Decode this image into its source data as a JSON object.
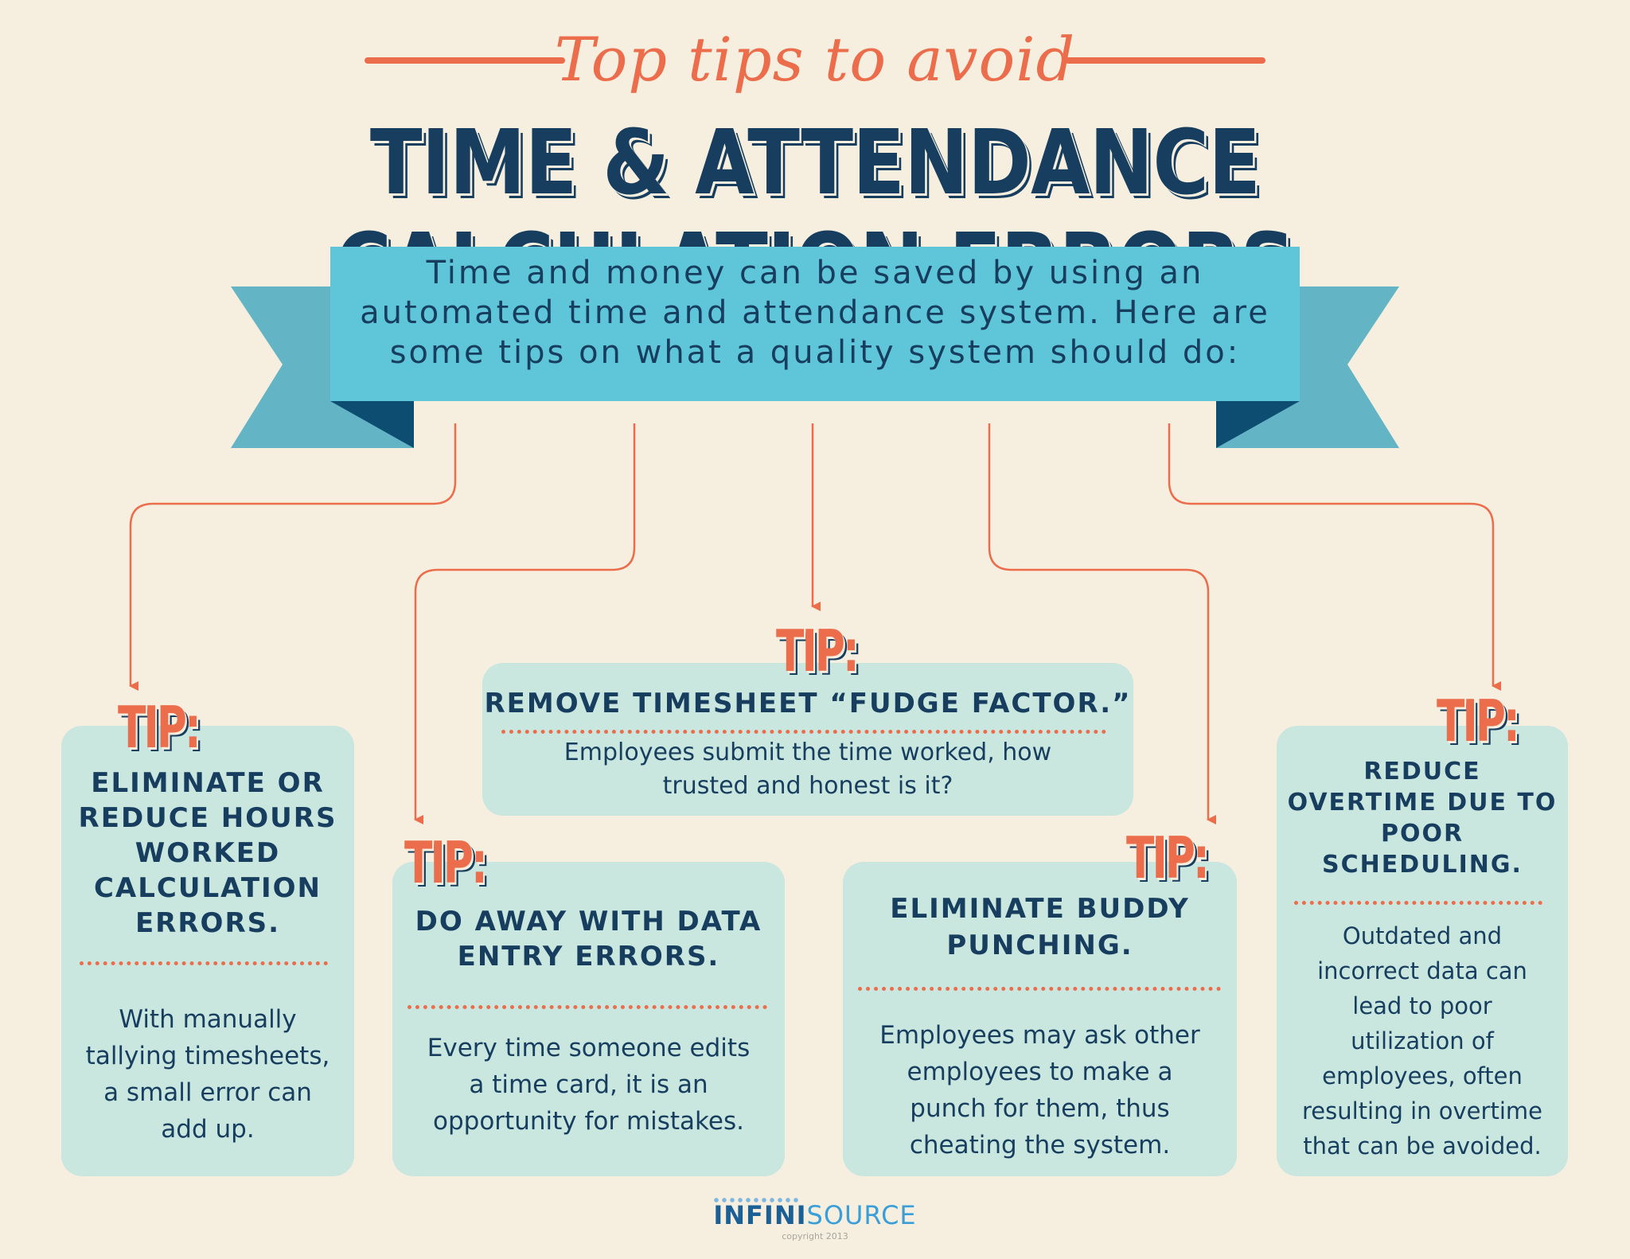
{
  "header": {
    "subtitle": "Top tips to avoid",
    "title": "TIME & ATTENDANCE CALCULATION ERRORS"
  },
  "ribbon": {
    "line1": "Time and money can be saved by using an",
    "line2": "automated time and attendance system. Here are",
    "line3": "some tips on what a quality system should do:"
  },
  "tip_label": "TIP:",
  "tips": [
    {
      "title_lines": [
        "ELIMINATE OR",
        "REDUCE HOURS",
        "WORKED",
        "CALCULATION",
        "ERRORS."
      ],
      "body_lines": [
        "With manually",
        "tallying timesheets,",
        "a small error can",
        "add up."
      ]
    },
    {
      "title_lines": [
        "DO AWAY WITH DATA",
        "ENTRY ERRORS."
      ],
      "body_lines": [
        "Every time someone edits",
        "a time card, it is an",
        "opportunity for mistakes."
      ]
    },
    {
      "title_lines": [
        "REMOVE TIMESHEET “FUDGE FACTOR.”"
      ],
      "body_lines": [
        "Employees submit the time worked, how",
        "trusted and honest is it?"
      ]
    },
    {
      "title_lines": [
        "ELIMINATE BUDDY",
        "PUNCHING."
      ],
      "body_lines": [
        "Employees may ask other",
        "employees to make a",
        "punch for them, thus",
        "cheating the system."
      ]
    },
    {
      "title_lines": [
        "REDUCE",
        "OVERTIME DUE TO",
        "POOR",
        "SCHEDULING."
      ],
      "body_lines": [
        "Outdated and",
        "incorrect data can",
        "lead to poor",
        "utilization of",
        "employees, often",
        "resulting in overtime",
        "that can be avoided."
      ]
    }
  ],
  "footer": {
    "logo_part1": "INFINI",
    "logo_part2": "SOURCE",
    "copyright": "copyright 2013"
  },
  "colors": {
    "background": "#f6efe0",
    "navy": "#173e5f",
    "orange": "#ec6d4c",
    "card": "#c9e6df",
    "ribbon": "#5fc6d9",
    "ribbon_tail": "#63b4c5",
    "ribbon_fold": "#0e4d72"
  }
}
